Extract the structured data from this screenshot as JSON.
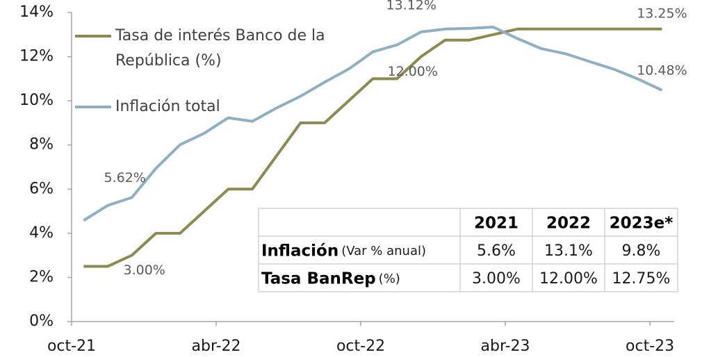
{
  "chart_data": {
    "type": "line",
    "categories": [
      "oct-21",
      null,
      null,
      null,
      null,
      null,
      "abr-22",
      null,
      null,
      null,
      null,
      null,
      "oct-22",
      null,
      null,
      null,
      null,
      null,
      "abr-23",
      null,
      null,
      null,
      null,
      null,
      "oct-23"
    ],
    "series": [
      {
        "name": "Tasa de interés Banco de la República (%)",
        "color": "#8b8a50",
        "values": [
          2.5,
          2.5,
          3.0,
          4.0,
          4.0,
          5.0,
          6.0,
          6.0,
          7.5,
          9.0,
          9.0,
          10.0,
          11.0,
          11.0,
          12.0,
          12.75,
          12.75,
          13.0,
          13.25,
          13.25,
          13.25,
          13.25,
          13.25,
          13.25,
          13.25
        ]
      },
      {
        "name": "Inflación total",
        "color": "#8fb0c2",
        "values": [
          4.58,
          5.26,
          5.62,
          6.94,
          8.01,
          8.53,
          9.23,
          9.07,
          9.67,
          10.21,
          10.84,
          11.44,
          12.22,
          12.53,
          13.12,
          13.25,
          13.28,
          13.34,
          12.82,
          12.36,
          12.13,
          11.78,
          11.43,
          10.99,
          10.48
        ]
      }
    ],
    "ylim": [
      0,
      14
    ],
    "yticks": [
      {
        "value": 0,
        "label": "0%"
      },
      {
        "value": 2,
        "label": "2%"
      },
      {
        "value": 4,
        "label": "4%"
      },
      {
        "value": 6,
        "label": "6%"
      },
      {
        "value": 8,
        "label": "8%"
      },
      {
        "value": 10,
        "label": "10%"
      },
      {
        "value": 12,
        "label": "12%"
      },
      {
        "value": 14,
        "label": "14%"
      }
    ],
    "legend": "top-left",
    "annotations": [
      {
        "series": 1,
        "index": 2,
        "text": "5.62%"
      },
      {
        "series": 0,
        "index": 2,
        "text": "3.00%"
      },
      {
        "series": 1,
        "index": 14,
        "text": "13.12%"
      },
      {
        "series": 0,
        "index": 14,
        "text": "12.00%"
      },
      {
        "series": 0,
        "index": 24,
        "text": "13.25%"
      },
      {
        "series": 1,
        "index": 24,
        "text": "10.48%"
      }
    ]
  },
  "table": {
    "columns": [
      "2021",
      "2022",
      "2023e*"
    ],
    "rows": [
      {
        "label": "Inflación",
        "unit": "(Var % anual)",
        "cells": [
          "5.6%",
          "13.1%",
          "9.8%"
        ]
      },
      {
        "label": "Tasa BanRep",
        "unit": "(%)",
        "cells": [
          "3.00%",
          "12.00%",
          "12.75%"
        ]
      }
    ]
  }
}
